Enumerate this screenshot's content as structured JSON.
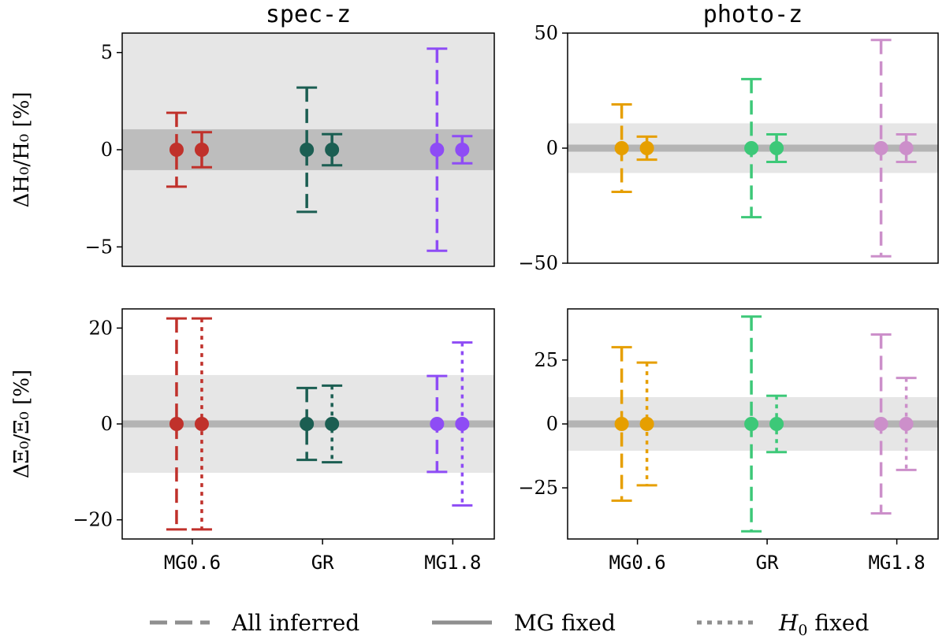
{
  "chart_data": {
    "type": "errorbar",
    "categories": [
      "MG0.6",
      "GR",
      "MG1.8"
    ],
    "legend": {
      "placement": "bottom",
      "entries": [
        {
          "label": "All inferred",
          "style": "dashed"
        },
        {
          "label": "MG fixed",
          "style": "solid"
        },
        {
          "label": "fixed",
          "style": "dotted",
          "math_prefix": "H",
          "math_sub": "0"
        }
      ]
    },
    "panels": [
      {
        "title": "spec-z",
        "ylabel": "ΔH₀/H₀ [%]",
        "ylim": [
          -6,
          6
        ],
        "yticks": [
          5,
          0,
          -5
        ],
        "ytick_labels": [
          "5",
          "0",
          "−5"
        ],
        "background": "#e6e6e6",
        "band": {
          "min": -1.05,
          "max": 1.05,
          "color": "#bdbdbd"
        },
        "centerline": false,
        "show_xticks": false,
        "points": [
          {
            "category": "MG0.6",
            "offset": -1,
            "y": 0,
            "err": 1.9,
            "style": "dashed",
            "color": "#c0312b"
          },
          {
            "category": "MG0.6",
            "offset": 1,
            "y": 0,
            "err": 0.9,
            "style": "solid",
            "color": "#c0312b"
          },
          {
            "category": "GR",
            "offset": -1,
            "y": 0,
            "err": 3.2,
            "style": "dashed",
            "color": "#1b5e52"
          },
          {
            "category": "GR",
            "offset": 1,
            "y": 0,
            "err": 0.8,
            "style": "solid",
            "color": "#1b5e52"
          },
          {
            "category": "MG1.8",
            "offset": -1,
            "y": 0,
            "err": 5.2,
            "style": "dashed",
            "color": "#8e4cf5"
          },
          {
            "category": "MG1.8",
            "offset": 1,
            "y": 0,
            "err": 0.7,
            "style": "solid",
            "color": "#8e4cf5"
          }
        ]
      },
      {
        "title": "photo-z",
        "ylabel": "",
        "ylim": [
          -50,
          50
        ],
        "yticks": [
          50,
          0,
          -50
        ],
        "ytick_labels": [
          "50",
          "0",
          "−50"
        ],
        "background": "#ffffff",
        "band": {
          "min": -10.8,
          "max": 10.8,
          "color": "#e6e6e6"
        },
        "centerline": true,
        "show_xticks": false,
        "points": [
          {
            "category": "MG0.6",
            "offset": -1,
            "y": 0,
            "err": 19,
            "style": "dashed",
            "color": "#e69f00"
          },
          {
            "category": "MG0.6",
            "offset": 1,
            "y": 0,
            "err": 5,
            "style": "solid",
            "color": "#e69f00"
          },
          {
            "category": "GR",
            "offset": -1,
            "y": 0,
            "err": 30,
            "style": "dashed",
            "color": "#3dc878"
          },
          {
            "category": "GR",
            "offset": 1,
            "y": 0,
            "err": 6,
            "style": "solid",
            "color": "#3dc878"
          },
          {
            "category": "MG1.8",
            "offset": -1,
            "y": 0,
            "err": 47,
            "style": "dashed",
            "color": "#cc8fca"
          },
          {
            "category": "MG1.8",
            "offset": 1,
            "y": 0,
            "err": 6,
            "style": "solid",
            "color": "#cc8fca"
          }
        ]
      },
      {
        "title": "",
        "ylabel": "ΔΞ₀/Ξ₀ [%]",
        "ylim": [
          -24,
          24
        ],
        "yticks": [
          20,
          0,
          -20
        ],
        "ytick_labels": [
          "20",
          "0",
          "−20"
        ],
        "background": "#ffffff",
        "band": {
          "min": -10.2,
          "max": 10.2,
          "color": "#e6e6e6"
        },
        "centerline": true,
        "show_xticks": true,
        "points": [
          {
            "category": "MG0.6",
            "offset": -1,
            "y": 0,
            "err": 22,
            "style": "dashed",
            "color": "#c0312b"
          },
          {
            "category": "MG0.6",
            "offset": 1,
            "y": 0,
            "err": 22,
            "style": "dotted",
            "color": "#c0312b"
          },
          {
            "category": "GR",
            "offset": -1,
            "y": 0,
            "err": 7.5,
            "style": "dashed",
            "color": "#1b5e52"
          },
          {
            "category": "GR",
            "offset": 1,
            "y": 0,
            "err": 8,
            "style": "dotted",
            "color": "#1b5e52"
          },
          {
            "category": "MG1.8",
            "offset": -1,
            "y": 0,
            "err": 10,
            "style": "dashed",
            "color": "#8e4cf5"
          },
          {
            "category": "MG1.8",
            "offset": 1,
            "y": 0,
            "err": 17,
            "style": "dotted",
            "color": "#8e4cf5"
          }
        ]
      },
      {
        "title": "",
        "ylabel": "",
        "ylim": [
          -45,
          45
        ],
        "yticks": [
          25,
          0,
          -25
        ],
        "ytick_labels": [
          "25",
          "0",
          "−25"
        ],
        "background": "#ffffff",
        "band": {
          "min": -10.5,
          "max": 10.5,
          "color": "#e6e6e6"
        },
        "centerline": true,
        "show_xticks": true,
        "points": [
          {
            "category": "MG0.6",
            "offset": -1,
            "y": 0,
            "err": 30,
            "style": "dashed",
            "color": "#e69f00"
          },
          {
            "category": "MG0.6",
            "offset": 1,
            "y": 0,
            "err": 24,
            "style": "dotted",
            "color": "#e69f00"
          },
          {
            "category": "GR",
            "offset": -1,
            "y": 0,
            "err": 42,
            "style": "dashed",
            "color": "#3dc878"
          },
          {
            "category": "GR",
            "offset": 1,
            "y": 0,
            "err": 11,
            "style": "dotted",
            "color": "#3dc878"
          },
          {
            "category": "MG1.8",
            "offset": -1,
            "y": 0,
            "err": 35,
            "style": "dashed",
            "color": "#cc8fca"
          },
          {
            "category": "MG1.8",
            "offset": 1,
            "y": 0,
            "err": 18,
            "style": "dotted",
            "color": "#cc8fca"
          }
        ]
      }
    ]
  }
}
